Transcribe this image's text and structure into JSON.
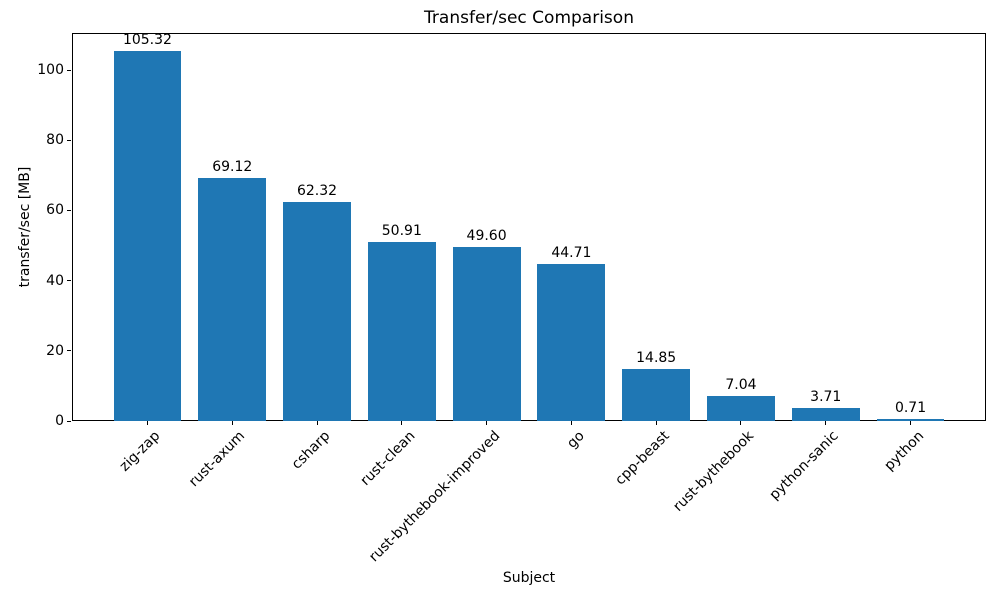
{
  "chart_data": {
    "type": "bar",
    "title": "Transfer/sec Comparison",
    "xlabel": "Subject",
    "ylabel": "transfer/sec [MB]",
    "categories": [
      "zig-zap",
      "rust-axum",
      "csharp",
      "rust-clean",
      "rust-bythebook-improved",
      "go",
      "cpp-beast",
      "rust-bythebook",
      "python-sanic",
      "python"
    ],
    "values": [
      105.32,
      69.12,
      62.32,
      50.91,
      49.6,
      44.71,
      14.85,
      7.04,
      3.71,
      0.71
    ],
    "bar_labels": [
      "105.32",
      "69.12",
      "62.32",
      "50.91",
      "49.60",
      "44.71",
      "14.85",
      "7.04",
      "3.71",
      "0.71"
    ],
    "yticks": [
      0,
      20,
      40,
      60,
      80,
      100
    ],
    "ylim": [
      0,
      110.59
    ],
    "bar_color": "#1f77b4",
    "spine_color": "#000000",
    "text_color": "#000000",
    "grid": false,
    "legend_position": "none",
    "xtick_rotation_deg": 45
  }
}
